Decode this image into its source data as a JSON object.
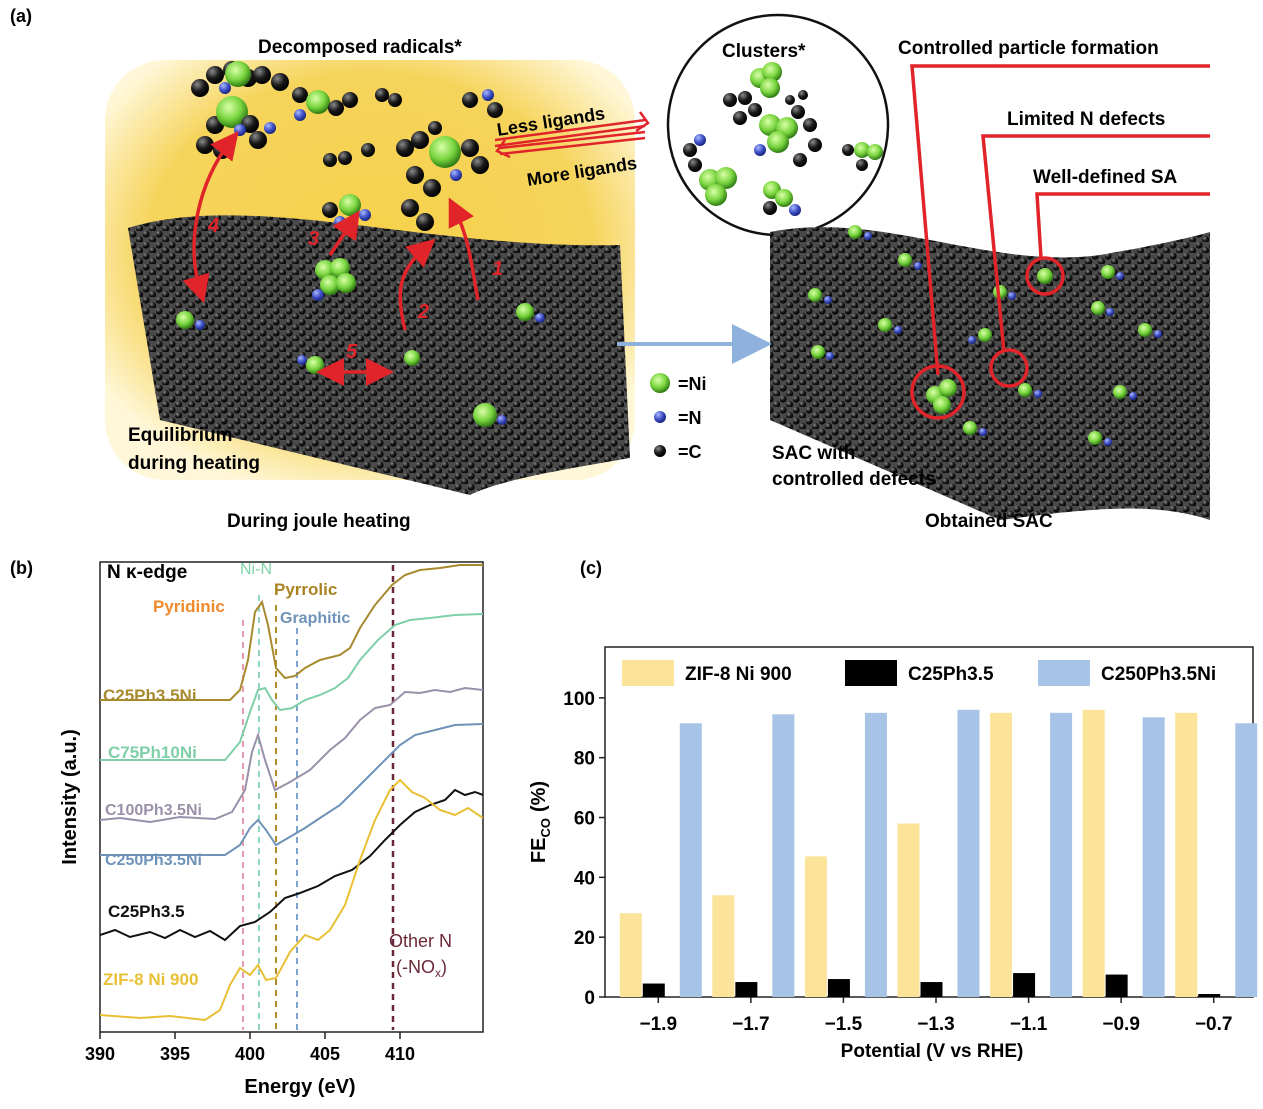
{
  "panel_a": {
    "label": "(a)",
    "decomposed": "Decomposed radicals*",
    "clusters": "Clusters*",
    "less_ligands": "Less ligands",
    "more_ligands": "More ligands",
    "controlled_particle": "Controlled particle formation",
    "limited_n": "Limited N defects",
    "well_defined": "Well-defined SA",
    "equilibrium_line1": "Equilibrium",
    "equilibrium_line2": "during heating",
    "sac_line1": "SAC with",
    "sac_line2": "controlled defects",
    "caption_left": "During joule heating",
    "caption_right": "Obtained SAC",
    "legend": [
      "=Ni",
      "=N",
      "=C"
    ],
    "step_numbers": [
      "1",
      "2",
      "3",
      "4",
      "5"
    ],
    "colors": {
      "ni": "#7fd94a",
      "n": "#4056c8",
      "c": "#222222",
      "red": "#e0242a",
      "glow": "#f5c638",
      "arrow": "#8fb1de"
    }
  },
  "panel_b": {
    "label": "(b)",
    "title": "N κ-edge",
    "peaks": {
      "ni_n": "Ni-N",
      "pyrrolic": "Pyrrolic",
      "pyridinic": "Pyridinic",
      "graphitic": "Graphitic",
      "other_line1": "Other N",
      "other_line2": "(-NO",
      "other_sub": "x",
      "other_close": ")"
    },
    "xlabel": "Energy (eV)",
    "ylabel": "Intensity (a.u.)",
    "xticks": [
      "390",
      "395",
      "400",
      "405",
      "410"
    ],
    "samples": [
      {
        "name": "C25Ph3.5Ni",
        "color": "#a88a2e"
      },
      {
        "name": "C75Ph10Ni",
        "color": "#7fcfa8"
      },
      {
        "name": "C100Ph3.5Ni",
        "color": "#9a90aa"
      },
      {
        "name": "C250Ph3.5Ni",
        "color": "#6f93b8"
      },
      {
        "name": "C25Ph3.5",
        "color": "#111111"
      },
      {
        "name": "ZIF-8 Ni 900",
        "color": "#e8c035"
      }
    ],
    "peak_colors": {
      "pyridinic": "#e69ab0",
      "ni_n": "#8fd5c0",
      "pyrrolic": "#b38b2a",
      "graphitic": "#7da3cf",
      "other": "#6b2838",
      "pyridinic_text": "#f08a2c",
      "ni_n_text": "#7fd4a8",
      "pyrrolic_text": "#a98222",
      "graphitic_text": "#6f93b8",
      "other_text": "#6b2838"
    }
  },
  "panel_c": {
    "label": "(c)",
    "xlabel": "Potential (V vs RHE)",
    "ylabel_main": "FE",
    "ylabel_sub": "CO",
    "ylabel_unit": "(%)",
    "yticks": [
      "0",
      "20",
      "40",
      "60",
      "80",
      "100"
    ]
  },
  "chart_data": {
    "type": "bar",
    "categories": [
      "−1.9",
      "−1.7",
      "−1.5",
      "−1.3",
      "−1.1",
      "−0.9",
      "−0.7"
    ],
    "series": [
      {
        "name": "ZIF-8 Ni 900",
        "color": "#fbe39a",
        "values": [
          28,
          34,
          47,
          58,
          95,
          96,
          95
        ]
      },
      {
        "name": "C25Ph3.5",
        "color": "#000000",
        "values": [
          4.5,
          5,
          6,
          5,
          8,
          7.5,
          1
        ]
      },
      {
        "name": "C250Ph3.5Ni",
        "color": "#a7c4e6",
        "values": [
          91.5,
          94.5,
          95,
          96,
          95,
          93.5,
          91.5
        ]
      }
    ],
    "xlabel": "Potential (V vs RHE)",
    "ylabel": "FE(CO) (%)",
    "ylim": [
      0,
      117
    ],
    "legend": "top",
    "grid": false
  }
}
